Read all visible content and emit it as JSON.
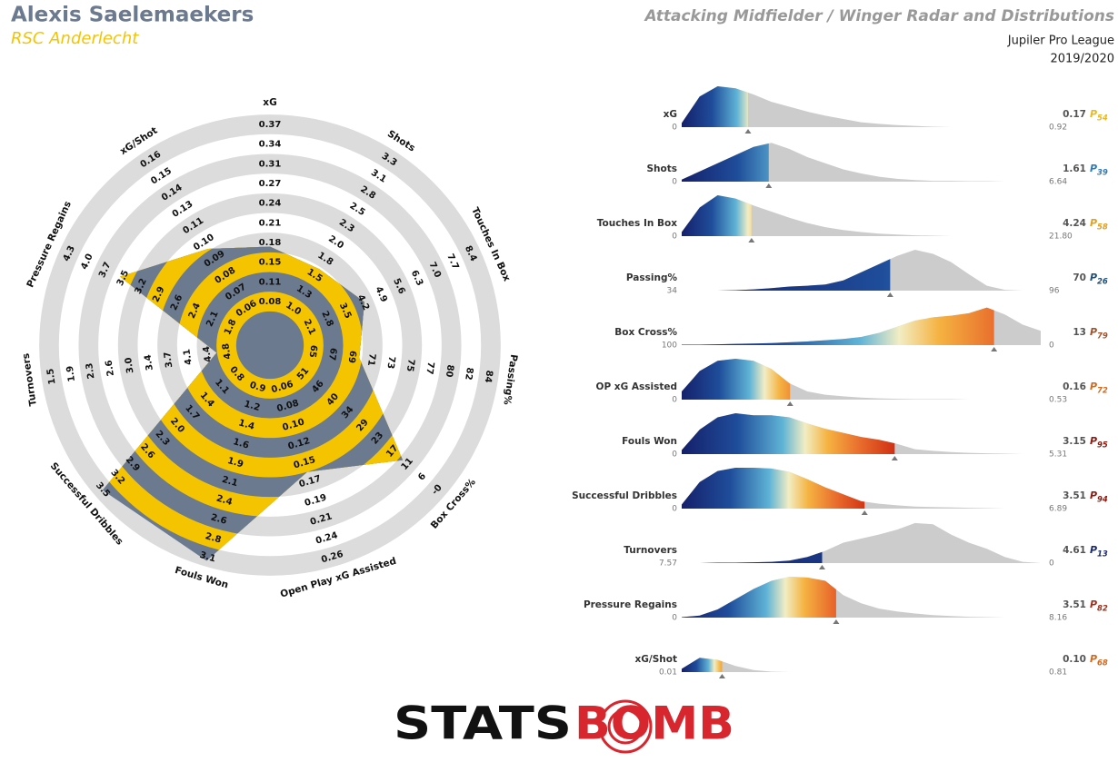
{
  "header": {
    "player": "Alexis Saelemaekers",
    "team": "RSC Anderlecht",
    "title": "Attacking Midfielder / Winger Radar and Distributions",
    "league": "Jupiler Pro League",
    "season": "2019/2020"
  },
  "logo": {
    "left": "STATS",
    "right": "BOMB"
  },
  "chart_data": [
    {
      "type": "radar",
      "color": "#f5c400",
      "color2": "#6b7a8f",
      "ring_color": "#dcdcdc",
      "axes": [
        {
          "name": "xG",
          "value": 0.17,
          "ticks": [
            0.08,
            0.11,
            0.15,
            0.18,
            0.21,
            0.24,
            0.27,
            0.31,
            0.34,
            0.37
          ]
        },
        {
          "name": "Shots",
          "value": 1.61,
          "ticks": [
            {
              "value": 1,
              "label": "1.0"
            },
            1.3,
            1.5,
            1.8,
            {
              "value": 2,
              "label": "2.0"
            },
            2.3,
            2.5,
            2.8,
            3.1,
            3.3
          ]
        },
        {
          "name": "Touches In Box",
          "value": 4.24,
          "ticks": [
            2.1,
            2.8,
            3.5,
            4.2,
            4.9,
            5.6,
            6.3,
            {
              "value": 7,
              "label": "7.0"
            },
            7.7,
            8.4
          ]
        },
        {
          "name": "Passing%",
          "value": 70,
          "ticks": [
            65,
            67,
            69,
            71,
            73,
            75,
            77,
            80,
            82,
            84
          ]
        },
        {
          "name": "Box Cross%",
          "value": 13,
          "ticks": [
            51,
            46,
            40,
            34,
            29,
            23,
            17,
            11,
            6,
            {
              "value": 0,
              "label": "-0"
            }
          ]
        },
        {
          "name": "Open Play xG Assisted",
          "value": 0.16,
          "ticks": [
            0.06,
            0.08,
            {
              "value": 0.1,
              "label": "0.10"
            },
            0.12,
            0.15,
            0.17,
            0.19,
            0.21,
            0.24,
            0.26
          ]
        },
        {
          "name": "Fouls Won",
          "value": 3.15,
          "ticks": [
            0.9,
            1.2,
            1.4,
            1.6,
            1.9,
            2.1,
            2.4,
            2.6,
            2.8,
            3.1
          ]
        },
        {
          "name": "Successful Dribbles",
          "value": 3.51,
          "ticks": [
            0.8,
            1.1,
            1.4,
            1.7,
            {
              "value": 2,
              "label": "2.0"
            },
            2.3,
            2.6,
            2.9,
            3.2,
            3.5
          ]
        },
        {
          "name": "Turnovers",
          "value": 4.61,
          "ticks": [
            4.8,
            4.4,
            4.1,
            3.7,
            3.4,
            {
              "value": 3,
              "label": "3.0"
            },
            2.6,
            2.3,
            1.9,
            1.5
          ]
        },
        {
          "name": "Pressure Regains",
          "value": 3.51,
          "ticks": [
            1.8,
            2.1,
            2.4,
            2.6,
            2.9,
            3.2,
            3.5,
            3.7,
            {
              "value": 4,
              "label": "4.0"
            },
            4.3
          ]
        },
        {
          "name": "xG/Shot",
          "value": 0.1,
          "ticks": [
            0.06,
            0.07,
            0.08,
            0.09,
            {
              "value": 0.1,
              "label": "0.10"
            },
            0.11,
            0.13,
            0.14,
            0.15,
            0.16
          ]
        }
      ]
    },
    {
      "type": "distribution",
      "percentile_symbol": "P",
      "fill_color": "#cccccc",
      "colormap": [
        [
          0,
          "#15206b"
        ],
        [
          0.25,
          "#1f4d9a"
        ],
        [
          0.45,
          "#5fb3d6"
        ],
        [
          0.55,
          "#f2edc4"
        ],
        [
          0.65,
          "#f5b342"
        ],
        [
          0.8,
          "#e86a2c"
        ],
        [
          1,
          "#c81e0a"
        ]
      ],
      "rows": [
        {
          "name": "xG",
          "xlim": [
            0,
            0.92
          ],
          "xticks": [
            0,
            0.92
          ],
          "value": 0.17,
          "percentile": 54,
          "percentile_color": "#e8b923",
          "density": [
            0.1,
            0.75,
            1.0,
            0.95,
            0.8,
            0.62,
            0.5,
            0.38,
            0.28,
            0.2,
            0.12,
            0.08,
            0.05,
            0.03,
            0.01,
            0,
            0,
            0,
            0,
            0,
            0
          ]
        },
        {
          "name": "Shots",
          "xlim": [
            0,
            6.64
          ],
          "xticks": [
            0,
            6.64
          ],
          "value": 1.61,
          "percentile": 39,
          "percentile_color": "#2c7bb6",
          "density": [
            0.05,
            0.25,
            0.45,
            0.65,
            0.85,
            0.95,
            0.8,
            0.6,
            0.45,
            0.3,
            0.2,
            0.12,
            0.07,
            0.04,
            0.02,
            0.02,
            0.01,
            0.01,
            0,
            0,
            0
          ]
        },
        {
          "name": "Touches In Box",
          "xlim": [
            0,
            21.8
          ],
          "xticks": [
            0,
            {
              "value": 21.8,
              "label": "21.80"
            }
          ],
          "value": 4.24,
          "percentile": 58,
          "percentile_color": "#e0a020",
          "density": [
            0.1,
            0.7,
            1.0,
            0.92,
            0.75,
            0.6,
            0.45,
            0.32,
            0.22,
            0.15,
            0.1,
            0.06,
            0.04,
            0.02,
            0.01,
            0,
            0,
            0,
            0,
            0,
            0
          ]
        },
        {
          "name": "Passing%",
          "xlim": [
            34,
            96
          ],
          "xticks": [
            34,
            96
          ],
          "value": 70,
          "percentile": 26,
          "percentile_color": "#1f4e79",
          "density": [
            0,
            0,
            0,
            0.01,
            0.03,
            0.06,
            0.1,
            0.12,
            0.15,
            0.25,
            0.45,
            0.65,
            0.85,
            1.0,
            0.9,
            0.7,
            0.4,
            0.12,
            0.02,
            0,
            0
          ]
        },
        {
          "name": "Box Cross%",
          "xlim": [
            100,
            0
          ],
          "xticks": [
            100,
            0
          ],
          "value": 13,
          "percentile": 79,
          "percentile_color": "#a0522d",
          "density": [
            0.01,
            0.01,
            0.02,
            0.03,
            0.04,
            0.05,
            0.07,
            0.09,
            0.12,
            0.15,
            0.2,
            0.3,
            0.45,
            0.6,
            0.68,
            0.72,
            0.78,
            0.92,
            0.75,
            0.5,
            0.35
          ]
        },
        {
          "name": "OP xG Assisted",
          "xlim": [
            0,
            0.53
          ],
          "xticks": [
            0,
            0.53
          ],
          "value": 0.16,
          "percentile": 72,
          "percentile_color": "#d2691e",
          "density": [
            0.2,
            0.7,
            0.95,
            1.0,
            0.95,
            0.75,
            0.4,
            0.2,
            0.12,
            0.08,
            0.05,
            0.03,
            0.02,
            0.01,
            0.01,
            0.01,
            0,
            0,
            0,
            0,
            0
          ]
        },
        {
          "name": "Fouls Won",
          "xlim": [
            0,
            5.31
          ],
          "xticks": [
            0,
            5.31
          ],
          "value": 3.15,
          "percentile": 95,
          "percentile_color": "#8b1a10",
          "density": [
            0.1,
            0.6,
            0.9,
            1.0,
            0.95,
            0.95,
            0.9,
            0.75,
            0.62,
            0.52,
            0.42,
            0.35,
            0.25,
            0.12,
            0.08,
            0.05,
            0.03,
            0.02,
            0.01,
            0,
            0
          ]
        },
        {
          "name": "Successful Dribbles",
          "xlim": [
            0,
            6.89
          ],
          "xticks": [
            0,
            6.89
          ],
          "value": 3.51,
          "percentile": 94,
          "percentile_color": "#8b1a10",
          "density": [
            0.1,
            0.65,
            0.92,
            1.0,
            1.0,
            0.98,
            0.9,
            0.72,
            0.52,
            0.35,
            0.18,
            0.12,
            0.08,
            0.05,
            0.04,
            0.03,
            0.02,
            0.01,
            0,
            0,
            0
          ]
        },
        {
          "name": "Turnovers",
          "xlim": [
            7.57,
            0
          ],
          "xticks": [
            7.57,
            0
          ],
          "value": 4.61,
          "percentile": 13,
          "percentile_color": "#1a2a6c",
          "density": [
            0,
            0,
            0.01,
            0.01,
            0.02,
            0.03,
            0.06,
            0.15,
            0.3,
            0.5,
            0.6,
            0.7,
            0.82,
            0.98,
            0.95,
            0.7,
            0.5,
            0.35,
            0.15,
            0.03,
            0
          ]
        },
        {
          "name": "Pressure Regains",
          "xlim": [
            0,
            8.16
          ],
          "xticks": [
            0,
            8.16
          ],
          "value": 3.51,
          "percentile": 82,
          "percentile_color": "#a0301a",
          "density": [
            0.01,
            0.05,
            0.2,
            0.45,
            0.7,
            0.9,
            1.0,
            0.98,
            0.9,
            0.55,
            0.35,
            0.22,
            0.15,
            0.1,
            0.06,
            0.04,
            0.02,
            0.01,
            0,
            0,
            0
          ]
        },
        {
          "name": "xG/Shot",
          "xlim": [
            0.01,
            0.81
          ],
          "xticks": [
            0.01,
            0.81
          ],
          "value": 0.1,
          "value_label": "0.10",
          "percentile": 68,
          "percentile_color": "#d2691e",
          "density": [
            0.08,
            0.35,
            0.3,
            0.15,
            0.05,
            0.01,
            0,
            0,
            0,
            0,
            0,
            0,
            0,
            0,
            0,
            0,
            0,
            0,
            0,
            0,
            0
          ]
        }
      ]
    }
  ]
}
